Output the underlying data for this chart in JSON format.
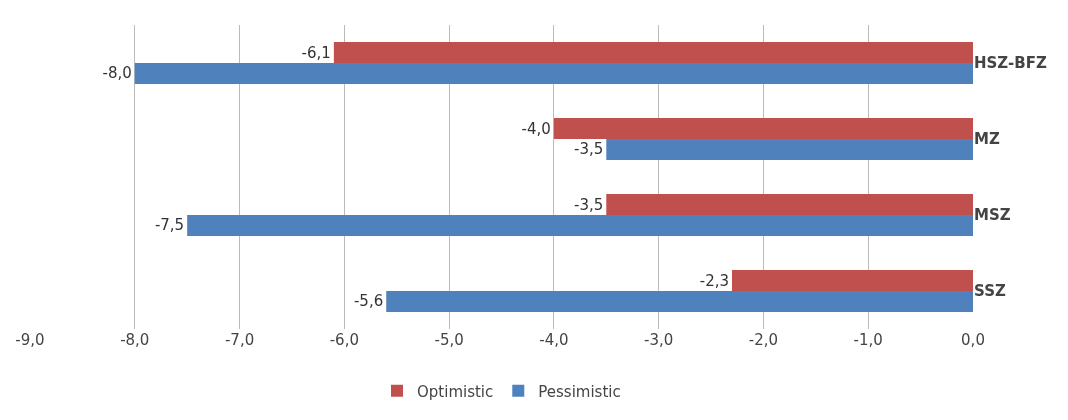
{
  "chart_data": {
    "type": "bar",
    "orientation": "horizontal",
    "categories": [
      "HSZ-BFZ",
      "MZ",
      "MSZ",
      "SSZ"
    ],
    "series": [
      {
        "name": "Optimistic",
        "color": "#c0504d",
        "values": [
          -6.1,
          -4.0,
          -3.5,
          -2.3
        ],
        "value_labels": [
          "-6,1",
          "-4,0",
          "-3,5",
          "-2,3"
        ]
      },
      {
        "name": "Pessimistic",
        "color": "#4f81bd",
        "values": [
          -8.0,
          -3.5,
          -7.5,
          -5.6
        ],
        "value_labels": [
          "-8,0",
          "-3,5",
          "-7,5",
          "-5,6"
        ]
      }
    ],
    "xlim": [
      -9,
      0
    ],
    "xticks": [
      {
        "value": -9,
        "label": "-9,0"
      },
      {
        "value": -8,
        "label": "-8,0"
      },
      {
        "value": -7,
        "label": "-7,0"
      },
      {
        "value": -6,
        "label": "-6,0"
      },
      {
        "value": -5,
        "label": "-5,0"
      },
      {
        "value": -4,
        "label": "-4,0"
      },
      {
        "value": -3,
        "label": "-3,0"
      },
      {
        "value": -2,
        "label": "-2,0"
      },
      {
        "value": -1,
        "label": "-1,0"
      },
      {
        "value": 0,
        "label": "0,0"
      }
    ],
    "grid": "x",
    "legend": "bottom"
  }
}
